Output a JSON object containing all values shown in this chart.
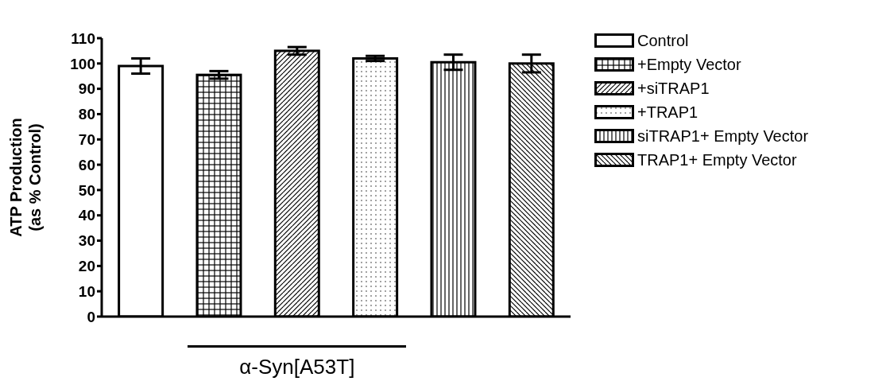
{
  "chart_data": {
    "type": "bar",
    "ylabel": "ATP Production\n(as % Control)",
    "categories": [
      null,
      null,
      null,
      null,
      null,
      null
    ],
    "series": [
      {
        "name": "Control",
        "color": "#000000",
        "values": [
          99,
          null,
          null,
          null,
          null,
          null
        ],
        "errors": [
          3,
          null,
          null,
          null,
          null,
          null
        ]
      },
      {
        "name": "+Empty Vector",
        "color": "#000000",
        "values": [
          null,
          95.5,
          null,
          null,
          null,
          null
        ],
        "errors": [
          null,
          1.5,
          null,
          null,
          null,
          null
        ]
      },
      {
        "name": "+siTRAP1",
        "color": "#000000",
        "values": [
          null,
          null,
          105,
          null,
          null,
          null
        ],
        "errors": [
          null,
          null,
          1.5,
          null,
          null,
          null
        ]
      },
      {
        "name": "+TRAP1",
        "color": "#000000",
        "values": [
          null,
          null,
          null,
          102,
          null,
          null
        ],
        "errors": [
          null,
          null,
          null,
          1,
          null,
          null
        ]
      },
      {
        "name": "siTRAP1+ Empty Vector",
        "color": "#000000",
        "values": [
          null,
          null,
          null,
          null,
          100.5,
          null
        ],
        "errors": [
          null,
          null,
          null,
          null,
          3,
          null
        ]
      },
      {
        "name": "TRAP1+  Empty Vector",
        "color": "#000000",
        "values": [
          null,
          null,
          null,
          null,
          null,
          100
        ],
        "errors": [
          null,
          null,
          null,
          null,
          null,
          3.5
        ]
      }
    ],
    "ylim": [
      0,
      110
    ],
    "yticks": [
      0,
      10,
      20,
      30,
      40,
      50,
      60,
      70,
      80,
      90,
      100,
      110
    ],
    "grid": false,
    "legend": "right",
    "annotations": [
      "α-Syn[A53T]"
    ]
  }
}
